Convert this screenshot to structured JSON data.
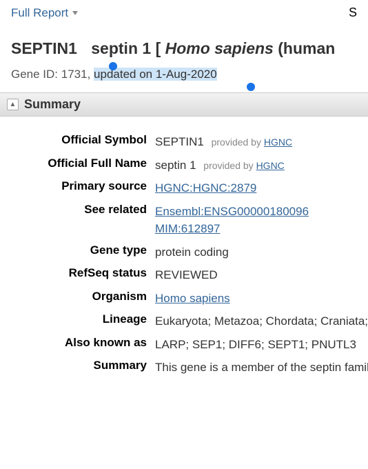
{
  "topbar": {
    "dropdown_label": "Full Report",
    "right_letter": "S"
  },
  "header": {
    "symbol": "SEPTIN1",
    "name_prefix": "septin 1 [ ",
    "species_italic": "Homo sapiens",
    "name_suffix": " (human",
    "gene_id_prefix": "Gene ID: 1731, ",
    "updated_text": "updated on 1-Aug-2020"
  },
  "section": {
    "title": "Summary"
  },
  "summary": {
    "labels": {
      "official_symbol": "Official Symbol",
      "official_full_name": "Official Full Name",
      "primary_source": "Primary source",
      "see_related": "See related",
      "gene_type": "Gene type",
      "refseq_status": "RefSeq status",
      "organism": "Organism",
      "lineage": "Lineage",
      "also_known_as": "Also known as",
      "summary": "Summary"
    },
    "values": {
      "official_symbol": "SEPTIN1",
      "official_full_name": "septin 1",
      "provided_by_text": "provided by",
      "provided_by_link": "HGNC",
      "primary_source": "HGNC:HGNC:2879",
      "see_related_1": "Ensembl:ENSG00000180096",
      "see_related_2": "MIM:612897",
      "gene_type": "protein coding",
      "refseq_status": "REVIEWED",
      "organism": "Homo sapiens",
      "lineage": "Eukaryota; Metazoa; Chordata; Craniata; Vertebrata; Euteleostomi; Mammalia; Eutheria; Euarchontoglires; Primates; Haplorrhini; Catarrhini; Hominidae; Homo",
      "also_known_as": "LARP; SEP1; DIFF6; SEPT1; PNUTL3",
      "summary_text": "This gene is a member of the septin family of GTPases. Members of this family are required for cytokinesis"
    }
  }
}
